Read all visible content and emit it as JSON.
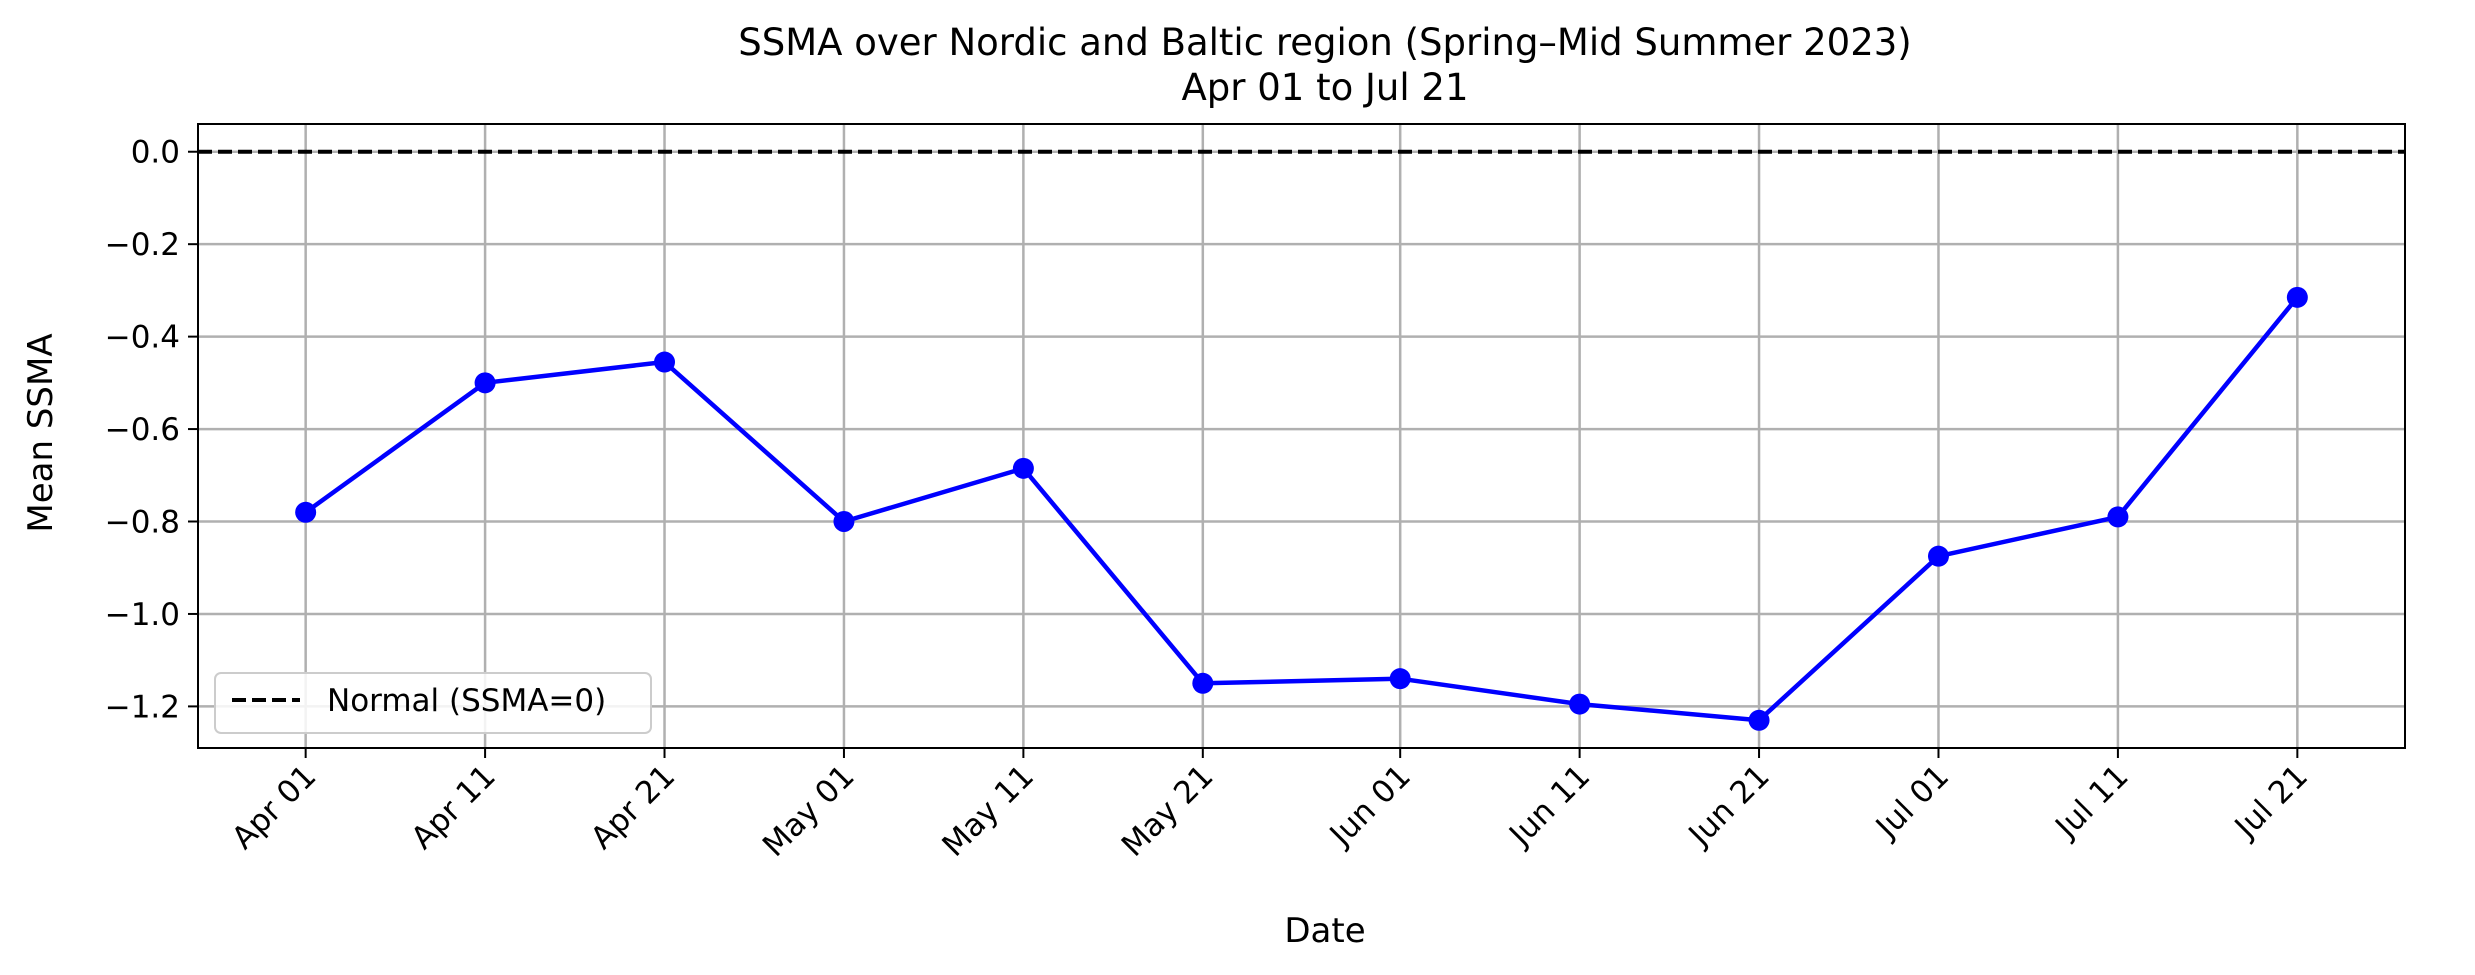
{
  "chart_data": {
    "type": "line",
    "title": "SSMA over Nordic and Baltic region (Spring–Mid Summer 2023)",
    "subtitle": "Apr 01 to Jul 21",
    "xlabel": "Date",
    "ylabel": "Mean SSMA",
    "x": [
      "2023-04-01",
      "2023-04-11",
      "2023-04-21",
      "2023-05-01",
      "2023-05-11",
      "2023-05-21",
      "2023-06-01",
      "2023-06-11",
      "2023-06-21",
      "2023-07-01",
      "2023-07-11",
      "2023-07-21"
    ],
    "x_tick_labels": [
      "Apr 01",
      "Apr 11",
      "Apr 21",
      "May 01",
      "May 11",
      "May 21",
      "Jun 01",
      "Jun 11",
      "Jun 21",
      "Jul 01",
      "Jul 11",
      "Jul 21"
    ],
    "xlim": [
      "2023-03-26",
      "2023-07-27"
    ],
    "ylim": [
      -1.29,
      0.06
    ],
    "y_ticks": [
      0.0,
      -0.2,
      -0.4,
      -0.6,
      -0.8,
      -1.0,
      -1.2
    ],
    "y_tick_labels": [
      "0.0",
      "−0.2",
      "−0.4",
      "−0.6",
      "−0.8",
      "−1.0",
      "−1.2"
    ],
    "series": [
      {
        "values": [
          -0.78,
          -0.5,
          -0.455,
          -0.8,
          -0.685,
          -1.15,
          -1.14,
          -1.195,
          -1.23,
          -0.875,
          -0.79,
          -0.315
        ],
        "color": "#0000ff",
        "marker": "circle"
      }
    ],
    "reference_line": {
      "y": 0.0,
      "style": "dashed",
      "color": "#000000",
      "legend_label": "Normal (SSMA=0)"
    },
    "grid": true,
    "legend_position": "lower-left"
  }
}
